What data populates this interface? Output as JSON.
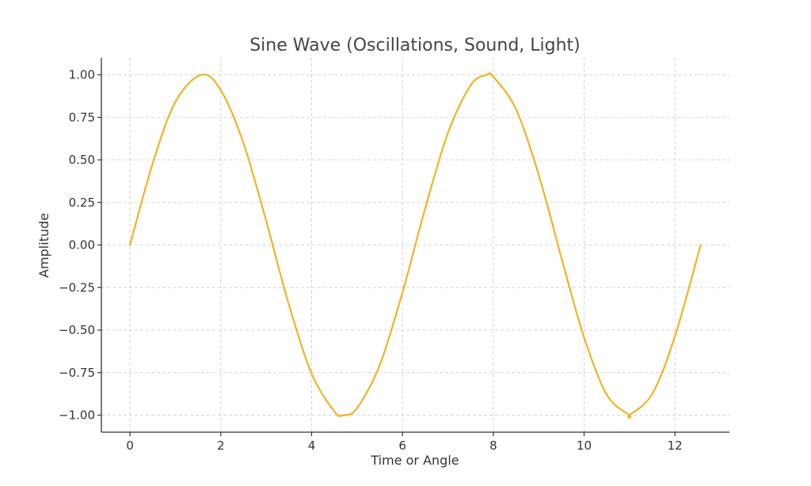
{
  "chart_data": {
    "type": "line",
    "title": "Sine Wave (Oscillations, Sound, Light)",
    "xlabel": "Time or Angle",
    "ylabel": "Amplitude",
    "xlim": [
      -0.63,
      13.2
    ],
    "ylim": [
      -1.1,
      1.1
    ],
    "x_ticks": [
      0,
      2,
      4,
      6,
      8,
      10,
      12
    ],
    "x_tick_labels": [
      "0",
      "2",
      "4",
      "6",
      "8",
      "10",
      "12"
    ],
    "y_ticks": [
      -1.0,
      -0.75,
      -0.5,
      -0.25,
      0.0,
      0.25,
      0.5,
      0.75,
      1.0
    ],
    "y_tick_labels": [
      "−1.00",
      "−0.75",
      "−0.50",
      "−0.25",
      "0.00",
      "0.25",
      "0.50",
      "0.75",
      "1.00"
    ],
    "grid": true,
    "series": [
      {
        "color": "#f0b323",
        "x": [
          0,
          0.5,
          1.0,
          1.5708,
          2.0,
          2.5,
          3.0,
          3.1416,
          3.5,
          4.0,
          4.5,
          4.7124,
          5.0,
          5.5,
          6.0,
          6.2832,
          6.5,
          7.0,
          7.5,
          7.854,
          8.0,
          8.5,
          9.0,
          9.4248,
          9.5,
          10.0,
          10.5,
          10.9956,
          11.0,
          11.5,
          12.0,
          12.5664
        ],
        "y": [
          0.0,
          0.479,
          0.841,
          1.0,
          0.909,
          0.598,
          0.141,
          0.0,
          -0.351,
          -0.757,
          -0.978,
          -1.0,
          -0.959,
          -0.706,
          -0.279,
          0.0,
          0.215,
          0.657,
          0.938,
          1.0,
          0.989,
          0.798,
          0.412,
          0.0,
          -0.075,
          -0.544,
          -0.88,
          -1.0,
          -1.0,
          -0.875,
          -0.537,
          0.0
        ]
      }
    ]
  }
}
